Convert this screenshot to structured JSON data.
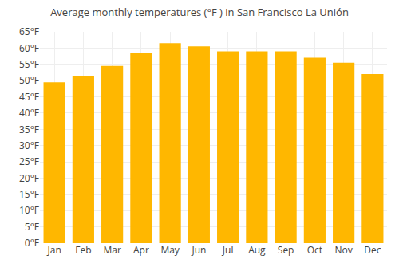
{
  "chart_data": {
    "type": "bar",
    "title": "Average monthly temperatures (°F ) in San Francisco La Unión",
    "categories": [
      "Jan",
      "Feb",
      "Mar",
      "Apr",
      "May",
      "Jun",
      "Jul",
      "Aug",
      "Sep",
      "Oct",
      "Nov",
      "Dec"
    ],
    "values": [
      49.5,
      51.5,
      54.5,
      58.5,
      61.5,
      60.5,
      59.0,
      59.0,
      59.0,
      57.0,
      55.5,
      52.0
    ],
    "color": "#FFB700",
    "ylim": [
      0,
      65
    ],
    "yticks": [
      {
        "value": 0,
        "label": "0°F"
      },
      {
        "value": 5,
        "label": "5°F"
      },
      {
        "value": 10,
        "label": "10°F"
      },
      {
        "value": 15,
        "label": "15°F"
      },
      {
        "value": 20,
        "label": "20°F"
      },
      {
        "value": 25,
        "label": "25°F"
      },
      {
        "value": 30,
        "label": "30°F"
      },
      {
        "value": 35,
        "label": "35°F"
      },
      {
        "value": 40,
        "label": "40°F"
      },
      {
        "value": 45,
        "label": "45°F"
      },
      {
        "value": 50,
        "label": "50°F"
      },
      {
        "value": 55,
        "label": "55°F"
      },
      {
        "value": 60,
        "label": "60°F"
      },
      {
        "value": 65,
        "label": "65°F"
      }
    ],
    "grid": true
  }
}
